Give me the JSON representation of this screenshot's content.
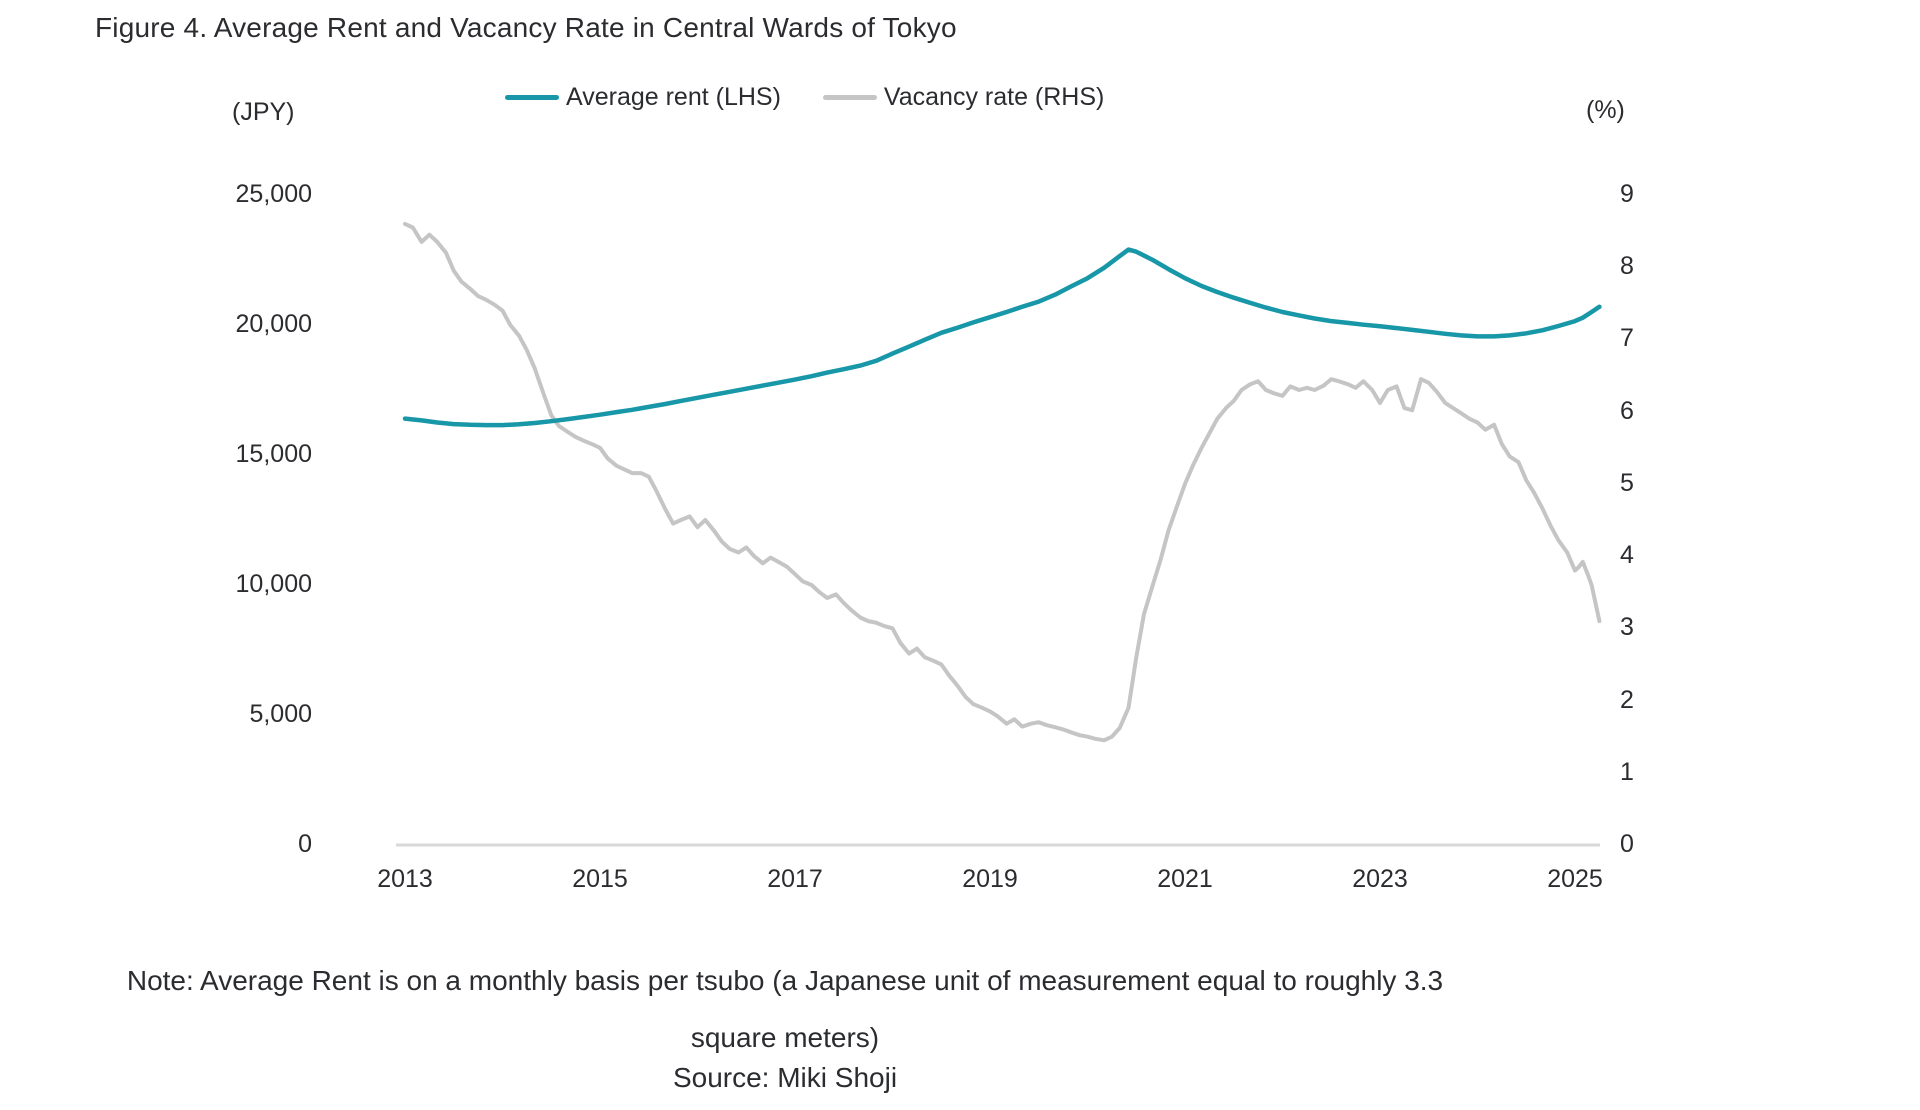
{
  "figure_title": "Figure 4. Average Rent and Vacancy Rate in Central Wards of Tokyo",
  "legend": {
    "items": [
      {
        "label": "Average rent (LHS)",
        "color": "#1797a8"
      },
      {
        "label": "Vacancy rate (RHS)",
        "color": "#c5c5c5"
      }
    ]
  },
  "axes": {
    "left": {
      "unit": "(JPY)",
      "ticks": [
        "25,000",
        "20,000",
        "15,000",
        "10,000",
        "5,000",
        "0"
      ]
    },
    "right": {
      "unit": "(%)",
      "ticks": [
        "9",
        "8",
        "7",
        "6",
        "5",
        "4",
        "3",
        "2",
        "1",
        "0"
      ]
    },
    "x": {
      "ticks": [
        "2013",
        "2015",
        "2017",
        "2019",
        "2021",
        "2023",
        "2025"
      ],
      "tick_years": [
        2013,
        2015,
        2017,
        2019,
        2021,
        2023,
        2025
      ]
    }
  },
  "note": {
    "line1": "Note: Average Rent is on a monthly basis per tsubo (a Japanese unit of measurement equal to roughly 3.3",
    "line2": "square meters)",
    "source": "Source: Miki Shoji"
  },
  "chart_data": {
    "type": "line",
    "title": "Figure 4. Average Rent and Vacancy Rate in Central Wards of Tokyo",
    "xlabel": "",
    "x_range": [
      2013,
      2025.25
    ],
    "left_axis": {
      "label": "(JPY)",
      "ylim": [
        0,
        25000
      ],
      "tick_step": 5000
    },
    "right_axis": {
      "label": "(%)",
      "ylim": [
        0,
        9
      ],
      "tick_step": 1
    },
    "grid": false,
    "legend_position": "top-center",
    "series": [
      {
        "name": "Average rent (LHS)",
        "axis": "left",
        "unit": "JPY per tsubo per month",
        "color": "#1797a8",
        "points": [
          [
            2013.0,
            16400
          ],
          [
            2013.17,
            16330
          ],
          [
            2013.33,
            16250
          ],
          [
            2013.5,
            16190
          ],
          [
            2013.67,
            16160
          ],
          [
            2013.83,
            16150
          ],
          [
            2014.0,
            16150
          ],
          [
            2014.17,
            16180
          ],
          [
            2014.33,
            16230
          ],
          [
            2014.5,
            16300
          ],
          [
            2014.67,
            16380
          ],
          [
            2014.83,
            16460
          ],
          [
            2015.0,
            16550
          ],
          [
            2015.17,
            16650
          ],
          [
            2015.33,
            16740
          ],
          [
            2015.5,
            16850
          ],
          [
            2015.67,
            16960
          ],
          [
            2015.83,
            17080
          ],
          [
            2016.0,
            17200
          ],
          [
            2016.17,
            17320
          ],
          [
            2016.33,
            17430
          ],
          [
            2016.5,
            17550
          ],
          [
            2016.67,
            17670
          ],
          [
            2016.83,
            17780
          ],
          [
            2017.0,
            17900
          ],
          [
            2017.17,
            18030
          ],
          [
            2017.33,
            18170
          ],
          [
            2017.5,
            18300
          ],
          [
            2017.67,
            18440
          ],
          [
            2017.83,
            18620
          ],
          [
            2018.0,
            18900
          ],
          [
            2018.17,
            19170
          ],
          [
            2018.33,
            19430
          ],
          [
            2018.5,
            19700
          ],
          [
            2018.67,
            19900
          ],
          [
            2018.83,
            20100
          ],
          [
            2019.0,
            20300
          ],
          [
            2019.17,
            20500
          ],
          [
            2019.33,
            20700
          ],
          [
            2019.5,
            20900
          ],
          [
            2019.67,
            21170
          ],
          [
            2019.83,
            21480
          ],
          [
            2020.0,
            21800
          ],
          [
            2020.17,
            22200
          ],
          [
            2020.33,
            22650
          ],
          [
            2020.42,
            22900
          ],
          [
            2020.5,
            22820
          ],
          [
            2020.67,
            22500
          ],
          [
            2020.83,
            22150
          ],
          [
            2021.0,
            21800
          ],
          [
            2021.17,
            21500
          ],
          [
            2021.33,
            21270
          ],
          [
            2021.5,
            21050
          ],
          [
            2021.67,
            20850
          ],
          [
            2021.83,
            20670
          ],
          [
            2022.0,
            20500
          ],
          [
            2022.17,
            20370
          ],
          [
            2022.33,
            20250
          ],
          [
            2022.5,
            20150
          ],
          [
            2022.67,
            20080
          ],
          [
            2022.83,
            20010
          ],
          [
            2023.0,
            19950
          ],
          [
            2023.17,
            19880
          ],
          [
            2023.33,
            19810
          ],
          [
            2023.5,
            19740
          ],
          [
            2023.67,
            19660
          ],
          [
            2023.83,
            19600
          ],
          [
            2024.0,
            19560
          ],
          [
            2024.17,
            19560
          ],
          [
            2024.33,
            19600
          ],
          [
            2024.5,
            19680
          ],
          [
            2024.67,
            19800
          ],
          [
            2024.83,
            19960
          ],
          [
            2025.0,
            20150
          ],
          [
            2025.08,
            20280
          ],
          [
            2025.17,
            20500
          ],
          [
            2025.25,
            20700
          ]
        ]
      },
      {
        "name": "Vacancy rate (RHS)",
        "axis": "right",
        "unit": "%",
        "color": "#c5c5c5",
        "points": [
          [
            2013.0,
            8.6
          ],
          [
            2013.08,
            8.55
          ],
          [
            2013.17,
            8.35
          ],
          [
            2013.25,
            8.45
          ],
          [
            2013.33,
            8.35
          ],
          [
            2013.42,
            8.2
          ],
          [
            2013.5,
            7.95
          ],
          [
            2013.58,
            7.8
          ],
          [
            2013.67,
            7.7
          ],
          [
            2013.75,
            7.6
          ],
          [
            2013.83,
            7.55
          ],
          [
            2013.92,
            7.48
          ],
          [
            2014.0,
            7.4
          ],
          [
            2014.08,
            7.2
          ],
          [
            2014.17,
            7.05
          ],
          [
            2014.25,
            6.85
          ],
          [
            2014.33,
            6.6
          ],
          [
            2014.42,
            6.25
          ],
          [
            2014.5,
            5.95
          ],
          [
            2014.58,
            5.8
          ],
          [
            2014.67,
            5.72
          ],
          [
            2014.75,
            5.65
          ],
          [
            2014.83,
            5.6
          ],
          [
            2014.92,
            5.55
          ],
          [
            2015.0,
            5.5
          ],
          [
            2015.08,
            5.35
          ],
          [
            2015.17,
            5.25
          ],
          [
            2015.25,
            5.2
          ],
          [
            2015.33,
            5.15
          ],
          [
            2015.42,
            5.15
          ],
          [
            2015.5,
            5.1
          ],
          [
            2015.58,
            4.9
          ],
          [
            2015.67,
            4.65
          ],
          [
            2015.75,
            4.45
          ],
          [
            2015.83,
            4.5
          ],
          [
            2015.92,
            4.55
          ],
          [
            2016.0,
            4.4
          ],
          [
            2016.08,
            4.5
          ],
          [
            2016.17,
            4.35
          ],
          [
            2016.25,
            4.2
          ],
          [
            2016.33,
            4.1
          ],
          [
            2016.42,
            4.05
          ],
          [
            2016.5,
            4.12
          ],
          [
            2016.58,
            4.0
          ],
          [
            2016.67,
            3.9
          ],
          [
            2016.75,
            3.98
          ],
          [
            2016.83,
            3.92
          ],
          [
            2016.92,
            3.85
          ],
          [
            2017.0,
            3.75
          ],
          [
            2017.08,
            3.65
          ],
          [
            2017.17,
            3.6
          ],
          [
            2017.25,
            3.5
          ],
          [
            2017.33,
            3.42
          ],
          [
            2017.42,
            3.47
          ],
          [
            2017.5,
            3.35
          ],
          [
            2017.58,
            3.25
          ],
          [
            2017.67,
            3.15
          ],
          [
            2017.75,
            3.1
          ],
          [
            2017.83,
            3.08
          ],
          [
            2017.92,
            3.03
          ],
          [
            2018.0,
            3.0
          ],
          [
            2018.08,
            2.8
          ],
          [
            2018.17,
            2.65
          ],
          [
            2018.25,
            2.72
          ],
          [
            2018.33,
            2.6
          ],
          [
            2018.42,
            2.55
          ],
          [
            2018.5,
            2.5
          ],
          [
            2018.58,
            2.35
          ],
          [
            2018.67,
            2.2
          ],
          [
            2018.75,
            2.05
          ],
          [
            2018.83,
            1.95
          ],
          [
            2018.92,
            1.9
          ],
          [
            2019.0,
            1.85
          ],
          [
            2019.08,
            1.78
          ],
          [
            2019.17,
            1.68
          ],
          [
            2019.25,
            1.74
          ],
          [
            2019.33,
            1.64
          ],
          [
            2019.42,
            1.68
          ],
          [
            2019.5,
            1.7
          ],
          [
            2019.58,
            1.66
          ],
          [
            2019.67,
            1.63
          ],
          [
            2019.75,
            1.6
          ],
          [
            2019.83,
            1.56
          ],
          [
            2019.92,
            1.52
          ],
          [
            2020.0,
            1.5
          ],
          [
            2020.08,
            1.47
          ],
          [
            2020.17,
            1.45
          ],
          [
            2020.25,
            1.5
          ],
          [
            2020.33,
            1.62
          ],
          [
            2020.42,
            1.9
          ],
          [
            2020.5,
            2.6
          ],
          [
            2020.58,
            3.2
          ],
          [
            2020.67,
            3.6
          ],
          [
            2020.75,
            3.95
          ],
          [
            2020.83,
            4.35
          ],
          [
            2020.92,
            4.7
          ],
          [
            2021.0,
            5.0
          ],
          [
            2021.08,
            5.25
          ],
          [
            2021.17,
            5.5
          ],
          [
            2021.25,
            5.7
          ],
          [
            2021.33,
            5.9
          ],
          [
            2021.42,
            6.05
          ],
          [
            2021.5,
            6.15
          ],
          [
            2021.58,
            6.3
          ],
          [
            2021.67,
            6.38
          ],
          [
            2021.75,
            6.42
          ],
          [
            2021.83,
            6.3
          ],
          [
            2021.92,
            6.25
          ],
          [
            2022.0,
            6.22
          ],
          [
            2022.08,
            6.35
          ],
          [
            2022.17,
            6.3
          ],
          [
            2022.25,
            6.33
          ],
          [
            2022.33,
            6.3
          ],
          [
            2022.42,
            6.36
          ],
          [
            2022.5,
            6.45
          ],
          [
            2022.58,
            6.42
          ],
          [
            2022.67,
            6.38
          ],
          [
            2022.75,
            6.33
          ],
          [
            2022.83,
            6.42
          ],
          [
            2022.92,
            6.3
          ],
          [
            2023.0,
            6.12
          ],
          [
            2023.08,
            6.3
          ],
          [
            2023.17,
            6.35
          ],
          [
            2023.25,
            6.05
          ],
          [
            2023.33,
            6.02
          ],
          [
            2023.42,
            6.45
          ],
          [
            2023.5,
            6.4
          ],
          [
            2023.58,
            6.28
          ],
          [
            2023.67,
            6.12
          ],
          [
            2023.75,
            6.05
          ],
          [
            2023.83,
            5.98
          ],
          [
            2023.92,
            5.9
          ],
          [
            2024.0,
            5.85
          ],
          [
            2024.08,
            5.75
          ],
          [
            2024.17,
            5.82
          ],
          [
            2024.25,
            5.55
          ],
          [
            2024.33,
            5.38
          ],
          [
            2024.42,
            5.3
          ],
          [
            2024.5,
            5.05
          ],
          [
            2024.58,
            4.88
          ],
          [
            2024.67,
            4.65
          ],
          [
            2024.75,
            4.42
          ],
          [
            2024.83,
            4.22
          ],
          [
            2024.92,
            4.05
          ],
          [
            2025.0,
            3.8
          ],
          [
            2025.04,
            3.85
          ],
          [
            2025.08,
            3.92
          ],
          [
            2025.13,
            3.75
          ],
          [
            2025.17,
            3.6
          ],
          [
            2025.21,
            3.35
          ],
          [
            2025.25,
            3.1
          ]
        ]
      }
    ]
  }
}
